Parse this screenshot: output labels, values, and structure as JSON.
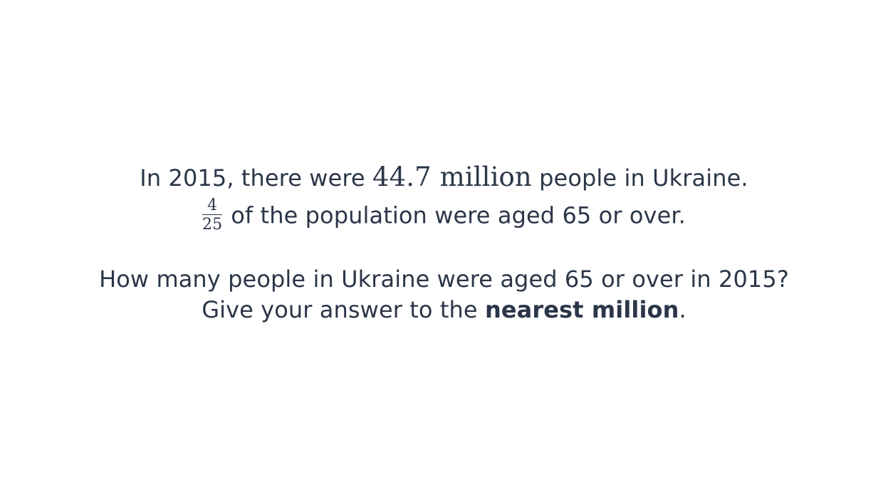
{
  "question": {
    "line1": {
      "prefix": "In 2015, there were",
      "math_value": "44.7 million",
      "suffix": "people in Ukraine."
    },
    "line2": {
      "fraction_numerator": "4",
      "fraction_denominator": "25",
      "text": "of the population were aged 65 or over."
    },
    "line3": "How many people in Ukraine were aged 65 or over in 2015?",
    "line4": {
      "prefix": "Give your answer to the",
      "bold": "nearest million",
      "suffix": "."
    }
  }
}
